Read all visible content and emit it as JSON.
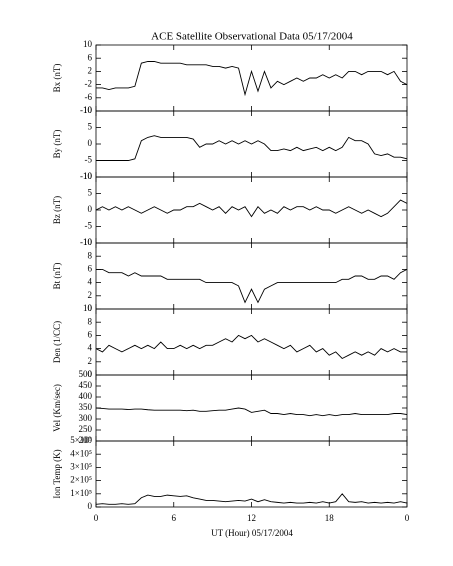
{
  "title": "ACE Satellite Observational Data   05/17/2004",
  "x_axis": {
    "label": "UT (Hour)   05/17/2004",
    "xticks": [
      0,
      6,
      12,
      18,
      {
        "value": 24,
        "label": "0"
      }
    ]
  },
  "chart_data": [
    {
      "type": "line",
      "ylabel": "Bx (nT)",
      "xlim": [
        0,
        24
      ],
      "ylim": [
        -10,
        10
      ],
      "yticks": [
        -10,
        -6,
        -2,
        2,
        6,
        10
      ],
      "color": "#000000",
      "x": [
        0,
        0.5,
        1,
        1.5,
        2,
        2.5,
        3,
        3.5,
        4,
        4.5,
        5,
        5.5,
        6,
        6.5,
        7,
        7.5,
        8,
        8.5,
        9,
        9.5,
        10,
        10.5,
        11,
        11.5,
        12,
        12.5,
        13,
        13.5,
        14,
        14.5,
        15,
        15.5,
        16,
        16.5,
        17,
        17.5,
        18,
        18.5,
        19,
        19.5,
        20,
        20.5,
        21,
        21.5,
        22,
        22.5,
        23,
        23.5,
        24
      ],
      "values": [
        -3,
        -3,
        -3.5,
        -3,
        -3,
        -3,
        -2.5,
        4.5,
        5,
        5,
        4.5,
        4.5,
        4.5,
        4.5,
        4,
        4,
        4,
        4,
        3.5,
        3.5,
        3,
        3.5,
        3,
        -5,
        2,
        -4,
        2,
        -3,
        -1,
        -2,
        -1,
        0,
        -1,
        0,
        0,
        1,
        0,
        1,
        0,
        2,
        2,
        1,
        2,
        2,
        2,
        1,
        2,
        -1,
        -2
      ]
    },
    {
      "type": "line",
      "ylabel": "By (nT)",
      "xlim": [
        0,
        24
      ],
      "ylim": [
        -10,
        10
      ],
      "yticks": [
        -10,
        -5,
        0,
        5,
        10
      ],
      "color": "#000000",
      "x": [
        0,
        0.5,
        1,
        1.5,
        2,
        2.5,
        3,
        3.5,
        4,
        4.5,
        5,
        5.5,
        6,
        6.5,
        7,
        7.5,
        8,
        8.5,
        9,
        9.5,
        10,
        10.5,
        11,
        11.5,
        12,
        12.5,
        13,
        13.5,
        14,
        14.5,
        15,
        15.5,
        16,
        16.5,
        17,
        17.5,
        18,
        18.5,
        19,
        19.5,
        20,
        20.5,
        21,
        21.5,
        22,
        22.5,
        23,
        23.5,
        24
      ],
      "values": [
        -5,
        -5,
        -5,
        -5,
        -5,
        -5,
        -4.5,
        1,
        2,
        2.5,
        2,
        2,
        2,
        2,
        2,
        1.5,
        -1,
        0,
        0,
        1,
        0,
        1,
        0,
        1,
        0,
        1,
        0,
        -2,
        -2,
        -1.5,
        -2,
        -1,
        -2,
        -1.5,
        -1,
        -2,
        -1,
        -2,
        -1,
        2,
        1,
        1,
        0,
        -3,
        -3.5,
        -3,
        -4,
        -4,
        -4.5
      ]
    },
    {
      "type": "line",
      "ylabel": "Bz (nT)",
      "xlim": [
        0,
        24
      ],
      "ylim": [
        -10,
        10
      ],
      "yticks": [
        -10,
        -5,
        0,
        5,
        10
      ],
      "color": "#000000",
      "x": [
        0,
        0.5,
        1,
        1.5,
        2,
        2.5,
        3,
        3.5,
        4,
        4.5,
        5,
        5.5,
        6,
        6.5,
        7,
        7.5,
        8,
        8.5,
        9,
        9.5,
        10,
        10.5,
        11,
        11.5,
        12,
        12.5,
        13,
        13.5,
        14,
        14.5,
        15,
        15.5,
        16,
        16.5,
        17,
        17.5,
        18,
        18.5,
        19,
        19.5,
        20,
        20.5,
        21,
        21.5,
        22,
        22.5,
        23,
        23.5,
        24
      ],
      "values": [
        0,
        1,
        0,
        1,
        0,
        1,
        0,
        -1,
        0,
        1,
        0,
        -1,
        0,
        0,
        1,
        1,
        2,
        1,
        0,
        1,
        -1,
        1,
        0,
        1,
        -2,
        1,
        -1,
        0,
        -1,
        1,
        0,
        1,
        1,
        0,
        1,
        0,
        0,
        -1,
        0,
        1,
        0,
        -1,
        0,
        -1,
        -2,
        -1,
        1,
        3,
        2
      ]
    },
    {
      "type": "line",
      "ylabel": "Bt (nT)",
      "xlim": [
        0,
        24
      ],
      "ylim": [
        0,
        10
      ],
      "yticks": [
        0,
        2,
        4,
        6,
        8,
        10
      ],
      "color": "#000000",
      "x": [
        0,
        0.5,
        1,
        1.5,
        2,
        2.5,
        3,
        3.5,
        4,
        4.5,
        5,
        5.5,
        6,
        6.5,
        7,
        7.5,
        8,
        8.5,
        9,
        9.5,
        10,
        10.5,
        11,
        11.5,
        12,
        12.5,
        13,
        13.5,
        14,
        14.5,
        15,
        15.5,
        16,
        16.5,
        17,
        17.5,
        18,
        18.5,
        19,
        19.5,
        20,
        20.5,
        21,
        21.5,
        22,
        22.5,
        23,
        23.5,
        24
      ],
      "values": [
        6,
        6,
        5.5,
        5.5,
        5.5,
        5,
        5.5,
        5,
        5,
        5,
        5,
        4.5,
        4.5,
        4.5,
        4.5,
        4.5,
        4.5,
        4,
        4,
        4,
        4,
        4,
        3.5,
        1,
        3,
        1,
        3,
        3.5,
        4,
        4,
        4,
        4,
        4,
        4,
        4,
        4,
        4,
        4,
        4.5,
        4.5,
        5,
        5,
        4.5,
        4.5,
        5,
        5,
        4.5,
        5.5,
        6
      ]
    },
    {
      "type": "line",
      "ylabel": "Den (1/CC)",
      "xlim": [
        0,
        24
      ],
      "ylim": [
        0,
        10
      ],
      "yticks": [
        0,
        2,
        4,
        6,
        8,
        10
      ],
      "color": "#000000",
      "x": [
        0,
        0.5,
        1,
        1.5,
        2,
        2.5,
        3,
        3.5,
        4,
        4.5,
        5,
        5.5,
        6,
        6.5,
        7,
        7.5,
        8,
        8.5,
        9,
        9.5,
        10,
        10.5,
        11,
        11.5,
        12,
        12.5,
        13,
        13.5,
        14,
        14.5,
        15,
        15.5,
        16,
        16.5,
        17,
        17.5,
        18,
        18.5,
        19,
        19.5,
        20,
        20.5,
        21,
        21.5,
        22,
        22.5,
        23,
        23.5,
        24
      ],
      "values": [
        4,
        3.5,
        4.5,
        4,
        3.5,
        4,
        4.5,
        4,
        4.5,
        4,
        5,
        4,
        4,
        4.5,
        4,
        4.5,
        4,
        4.5,
        4.5,
        5,
        5.5,
        5,
        6,
        5.5,
        6,
        5,
        5.5,
        5,
        4.5,
        4,
        4.5,
        3.5,
        4,
        4.5,
        3.5,
        4,
        3,
        3.5,
        2.5,
        3,
        3.5,
        3,
        3.5,
        3,
        4,
        3.5,
        4,
        3.5,
        3.5
      ]
    },
    {
      "type": "line",
      "ylabel": "Vel (Km/sec)",
      "xlim": [
        0,
        24
      ],
      "ylim": [
        200,
        500
      ],
      "yticks": [
        200,
        250,
        300,
        350,
        400,
        450,
        500
      ],
      "color": "#000000",
      "x": [
        0,
        0.5,
        1,
        1.5,
        2,
        2.5,
        3,
        3.5,
        4,
        4.5,
        5,
        5.5,
        6,
        6.5,
        7,
        7.5,
        8,
        8.5,
        9,
        9.5,
        10,
        10.5,
        11,
        11.5,
        12,
        12.5,
        13,
        13.5,
        14,
        14.5,
        15,
        15.5,
        16,
        16.5,
        17,
        17.5,
        18,
        18.5,
        19,
        19.5,
        20,
        20.5,
        21,
        21.5,
        22,
        22.5,
        23,
        23.5,
        24
      ],
      "values": [
        350,
        348,
        345,
        345,
        345,
        343,
        345,
        345,
        342,
        340,
        340,
        340,
        340,
        340,
        338,
        340,
        335,
        335,
        338,
        340,
        340,
        345,
        350,
        345,
        330,
        335,
        340,
        325,
        325,
        320,
        325,
        320,
        320,
        315,
        320,
        315,
        320,
        315,
        320,
        320,
        325,
        320,
        320,
        320,
        320,
        320,
        325,
        325,
        320
      ]
    },
    {
      "type": "line",
      "ylabel": "Ion Temp (K)",
      "xlim": [
        0,
        24
      ],
      "ylim": [
        0,
        500000
      ],
      "yticks": [
        0,
        {
          "value": 100000,
          "label": "1×10⁵"
        },
        {
          "value": 200000,
          "label": "2×10⁵"
        },
        {
          "value": 300000,
          "label": "3×10⁵"
        },
        {
          "value": 400000,
          "label": "4×10⁵"
        },
        {
          "value": 500000,
          "label": "5×10⁵"
        }
      ],
      "color": "#000000",
      "x": [
        0,
        0.5,
        1,
        1.5,
        2,
        2.5,
        3,
        3.5,
        4,
        4.5,
        5,
        5.5,
        6,
        6.5,
        7,
        7.5,
        8,
        8.5,
        9,
        9.5,
        10,
        10.5,
        11,
        11.5,
        12,
        12.5,
        13,
        13.5,
        14,
        14.5,
        15,
        15.5,
        16,
        16.5,
        17,
        17.5,
        18,
        18.5,
        19,
        19.5,
        20,
        20.5,
        21,
        21.5,
        22,
        22.5,
        23,
        23.5,
        24
      ],
      "values": [
        20000,
        25000,
        20000,
        20000,
        25000,
        20000,
        25000,
        70000,
        90000,
        80000,
        80000,
        90000,
        85000,
        80000,
        85000,
        70000,
        60000,
        50000,
        50000,
        45000,
        40000,
        45000,
        50000,
        45000,
        60000,
        40000,
        55000,
        40000,
        35000,
        30000,
        35000,
        30000,
        30000,
        35000,
        30000,
        40000,
        30000,
        40000,
        100000,
        40000,
        35000,
        40000,
        30000,
        35000,
        30000,
        35000,
        30000,
        40000,
        30000
      ]
    }
  ]
}
